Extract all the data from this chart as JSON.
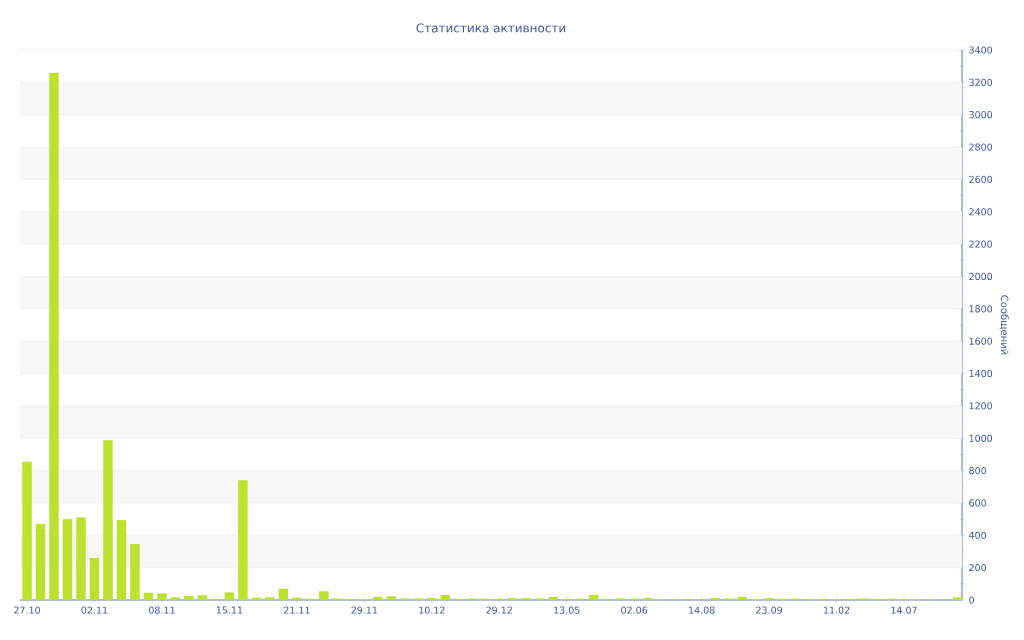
{
  "chart_data": {
    "type": "bar",
    "title": "Статистика активности",
    "ylabel": "Сообщений",
    "categories": [
      "27.10",
      null,
      null,
      null,
      null,
      "02.11",
      null,
      null,
      null,
      null,
      "08.11",
      null,
      null,
      null,
      null,
      "15.11",
      null,
      null,
      null,
      null,
      "21.11",
      null,
      null,
      null,
      null,
      "29.11",
      null,
      null,
      null,
      null,
      "10.12",
      null,
      null,
      null,
      null,
      "29.12",
      null,
      null,
      null,
      null,
      "13.05",
      null,
      null,
      null,
      null,
      "02.06",
      null,
      null,
      null,
      null,
      "14.08",
      null,
      null,
      null,
      null,
      "23.09",
      null,
      null,
      null,
      null,
      "11.02",
      null,
      null,
      null,
      null,
      "14.07",
      null,
      null,
      null,
      null
    ],
    "values": [
      855,
      470,
      3260,
      500,
      511,
      260,
      987,
      494,
      346,
      45,
      40,
      17,
      25,
      29,
      6,
      47,
      740,
      14,
      17,
      70,
      15,
      7,
      54,
      10,
      6,
      6,
      19,
      23,
      10,
      10,
      12,
      31,
      6,
      10,
      8,
      8,
      12,
      12,
      10,
      19,
      6,
      8,
      31,
      6,
      10,
      8,
      12,
      4,
      4,
      4,
      4,
      12,
      10,
      19,
      6,
      12,
      8,
      8,
      6,
      6,
      4,
      6,
      10,
      6,
      8,
      6,
      4,
      4,
      4,
      17
    ],
    "color": "#bce22f",
    "ylim": [
      0,
      3400
    ],
    "yticks": [
      0,
      200,
      400,
      600,
      800,
      1000,
      1200,
      1400,
      1600,
      1800,
      2000,
      2200,
      2400,
      2600,
      2800,
      3000,
      3200,
      3400
    ],
    "grid": "y"
  }
}
